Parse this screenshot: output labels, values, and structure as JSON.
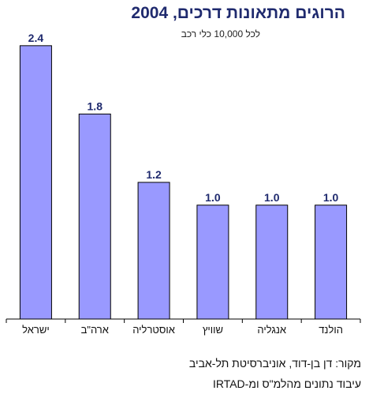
{
  "chart_data": {
    "type": "bar",
    "title": "הרוגים מתאונות דרכים, 2004",
    "subtitle": "לכל 10,000 כלי רכב",
    "categories": [
      "ישראל",
      "ארה\"ב",
      "אוסטרליה",
      "שוויץ",
      "אנגליה",
      "הולנד"
    ],
    "values": [
      2.4,
      1.8,
      1.2,
      1.0,
      1.0,
      1.0
    ],
    "value_labels": [
      "2.4",
      "1.8",
      "1.2",
      "1.0",
      "1.0",
      "1.0"
    ],
    "ylim": [
      0,
      2.6
    ],
    "grid": false,
    "legend": "none",
    "bar_color": "#9999ff",
    "bar_edge_color": "#000000",
    "label_color": "#1f2a6e"
  },
  "source": {
    "line1": "מקור: דן בן-דוד, אוניברסיטת תל-אביב",
    "line2": "עיבוד נתונים מהלמ\"ס ומ-IRTAD"
  }
}
